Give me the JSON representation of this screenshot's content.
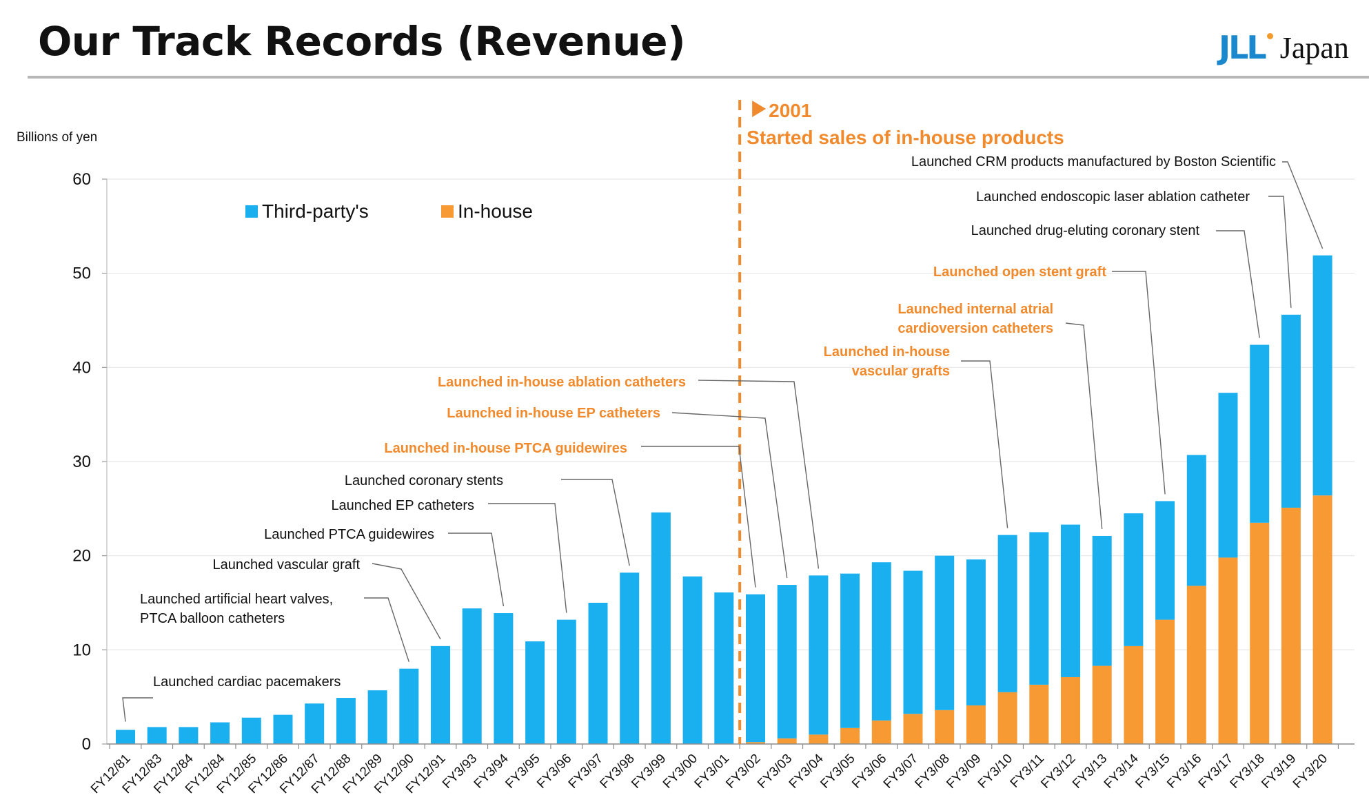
{
  "slide": {
    "title": "Our Track Records (Revenue)",
    "logo_mark": "JLL",
    "logo_text": "Japan"
  },
  "colors": {
    "third_party": "#1ab0ef",
    "in_house": "#f79a34",
    "orange_text": "#f08a2c",
    "axis_text": "#111111",
    "leader": "#666666"
  },
  "chart_data": {
    "type": "bar",
    "stacked": true,
    "ylabel": "Billions of yen",
    "ylim": [
      0,
      60
    ],
    "yticks": [
      0,
      10,
      20,
      30,
      40,
      50,
      60
    ],
    "legend_position": "top-left",
    "categories": [
      "FY12/81",
      "FY12/83",
      "FY12/84",
      "FY12/84",
      "FY12/85",
      "FY12/86",
      "FY12/87",
      "FY12/88",
      "FY12/89",
      "FY12/90",
      "FY12/91",
      "FY3/93",
      "FY3/94",
      "FY3/95",
      "FY3/96",
      "FY3/97",
      "FY3/98",
      "FY3/99",
      "FY3/00",
      "FY3/01",
      "FY3/02",
      "FY3/03",
      "FY3/04",
      "FY3/05",
      "FY3/06",
      "FY3/07",
      "FY3/08",
      "FY3/09",
      "FY3/10",
      "FY3/11",
      "FY3/12",
      "FY3/13",
      "FY3/14",
      "FY3/15",
      "FY3/16",
      "FY3/17",
      "FY3/18",
      "FY3/19",
      "FY3/20"
    ],
    "series": [
      {
        "name": "In-house",
        "values": [
          0,
          0,
          0,
          0,
          0,
          0,
          0,
          0,
          0,
          0,
          0,
          0,
          0,
          0,
          0,
          0,
          0,
          0,
          0,
          0,
          0.2,
          0.6,
          1.0,
          1.7,
          2.5,
          3.2,
          3.6,
          4.1,
          5.5,
          6.3,
          7.1,
          8.3,
          10.4,
          13.2,
          16.8,
          19.8,
          23.5,
          25.1,
          26.4
        ]
      },
      {
        "name": "Third-party's",
        "values": [
          1.5,
          1.8,
          1.8,
          2.3,
          2.8,
          3.1,
          4.3,
          4.9,
          5.7,
          8.0,
          10.4,
          14.4,
          13.9,
          10.9,
          13.2,
          15.0,
          18.2,
          24.6,
          17.8,
          16.1,
          15.7,
          16.3,
          16.9,
          16.4,
          16.8,
          15.2,
          16.4,
          15.5,
          16.7,
          16.2,
          16.2,
          13.8,
          14.1,
          12.6,
          13.9,
          17.5,
          18.9,
          20.5,
          25.5
        ]
      }
    ],
    "annotations": [
      {
        "text": [
          "Launched cardiac pacemakers"
        ],
        "bar": 0,
        "orange": false
      },
      {
        "text": [
          "Launched artificial heart valves,",
          "PTCA balloon catheters"
        ],
        "bar": 9,
        "orange": false
      },
      {
        "text": [
          "Launched vascular graft"
        ],
        "bar": 10,
        "orange": false
      },
      {
        "text": [
          "Launched PTCA guidewires"
        ],
        "bar": 12,
        "orange": false
      },
      {
        "text": [
          "Launched EP catheters"
        ],
        "bar": 14,
        "orange": false
      },
      {
        "text": [
          "Launched coronary stents"
        ],
        "bar": 16,
        "orange": false
      },
      {
        "text": [
          "Launched in-house PTCA guidewires"
        ],
        "bar": 20,
        "orange": true
      },
      {
        "text": [
          "Launched in-house EP catheters"
        ],
        "bar": 21,
        "orange": true
      },
      {
        "text": [
          "Launched in-house ablation catheters"
        ],
        "bar": 22,
        "orange": true
      },
      {
        "text": [
          "Launched in-house",
          "vascular grafts"
        ],
        "bar": 28,
        "orange": true
      },
      {
        "text": [
          "Launched internal atrial",
          "cardioversion catheters"
        ],
        "bar": 31,
        "orange": true
      },
      {
        "text": [
          "Launched open stent graft"
        ],
        "bar": 33,
        "orange": true
      },
      {
        "text": [
          "Launched drug-eluting coronary stent"
        ],
        "bar": 36,
        "orange": false
      },
      {
        "text": [
          "Launched endoscopic laser ablation catheter"
        ],
        "bar": 37,
        "orange": false
      },
      {
        "text": [
          "Launched CRM products manufactured by Boston Scientific"
        ],
        "bar": 38,
        "orange": false
      }
    ],
    "milestone": {
      "after_bar": 19,
      "year_label": "2001",
      "text": "Started sales of in-house products"
    }
  }
}
